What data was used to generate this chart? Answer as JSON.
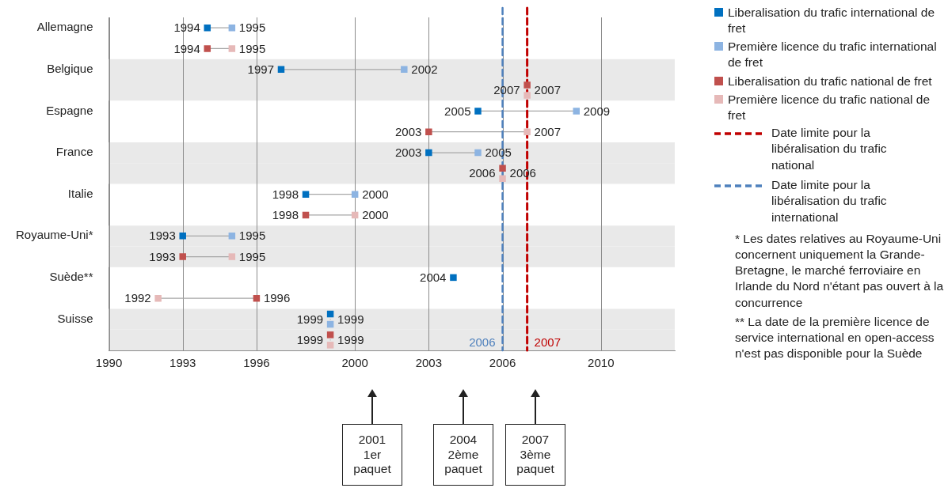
{
  "chart_data": {
    "type": "scatter",
    "orientation": "horizontal",
    "marker": "square",
    "line_style": "solid",
    "grid": "x",
    "legend": "right",
    "data_labels": true,
    "categories": [
      "Allemagne",
      null,
      "Belgique",
      null,
      "Espagne",
      null,
      "France",
      null,
      "Italie",
      null,
      "Royaume-Uni*",
      null,
      "Suède**",
      null,
      "Suisse",
      null
    ],
    "xlim": [
      1990,
      2013
    ],
    "xticks": [
      1990,
      1993,
      1996,
      2000,
      2003,
      2006,
      2010
    ],
    "series": [
      {
        "name": "Liberalisation du trafic international de fret",
        "color": "#0070c0",
        "values": [
          1994,
          null,
          1997,
          null,
          2005,
          null,
          2003,
          null,
          1998,
          null,
          1993,
          null,
          2004,
          null,
          1999,
          null
        ]
      },
      {
        "name": "Première licence du trafic international de fret",
        "color": "#8db4e2",
        "values": [
          1995,
          null,
          2002,
          null,
          2009,
          null,
          2005,
          null,
          2000,
          null,
          1995,
          null,
          null,
          null,
          1999,
          null
        ]
      },
      {
        "name": "Liberalisation du trafic national de fret",
        "color": "#c0504d",
        "values": [
          null,
          1994,
          null,
          2007,
          null,
          2003,
          null,
          2006,
          null,
          1998,
          null,
          1993,
          null,
          1996,
          null,
          1999
        ]
      },
      {
        "name": "Première licence du trafic national de fret",
        "color": "#e6b9b8",
        "values": [
          null,
          1995,
          null,
          2007,
          null,
          2007,
          null,
          2006,
          null,
          2000,
          null,
          1995,
          null,
          1992,
          null,
          1999
        ]
      }
    ],
    "bands": [
      {
        "axis": "y",
        "from": "Belgique",
        "to": "Belgique",
        "color": "#e9e9e9"
      },
      {
        "axis": "y",
        "from": "France",
        "to": "France",
        "color": "#e9e9e9"
      },
      {
        "axis": "y",
        "from": "Royaume-Uni*",
        "to": "Royaume-Uni*",
        "color": "#e9e9e9"
      },
      {
        "axis": "y",
        "from": "Suisse",
        "to": "Suisse",
        "color": "#e9e9e9"
      }
    ],
    "ref_lines": [
      {
        "axis": "x",
        "value": 2007,
        "label": "2007",
        "color": "#c00000",
        "line_style": "dashed"
      },
      {
        "axis": "x",
        "value": 2006,
        "label": "2006",
        "color": "#4f81bd",
        "line_style": "dashed"
      }
    ],
    "annotations": [
      "2001 1er paquet",
      "2004 2ème paquet",
      "2007 3ème paquet",
      "Date limite pour la libéralisation du trafic national",
      "Date limite pour la libéralisation du trafic international",
      "* Les dates relatives au Royaume-Uni concernent uniquement la Grande-Bretagne, le marché ferroviaire en Irlande du Nord n'étant pas ouvert à la concurrence",
      "** La date de la première licence de service international en open-access n'est pas disponible pour la Suède"
    ]
  }
}
